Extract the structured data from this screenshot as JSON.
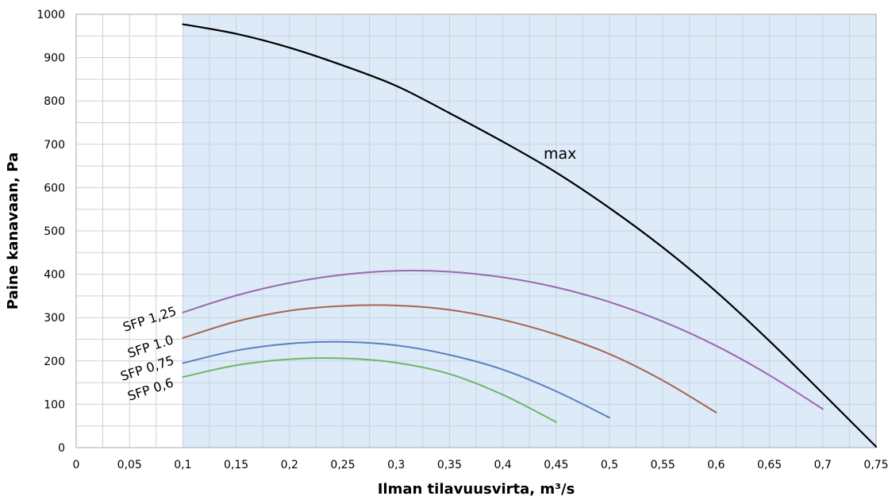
{
  "chart_data": {
    "type": "line",
    "title": "",
    "xlabel": "Ilman tilavuusvirta, m³/s",
    "ylabel": "Paine kanavaan, Pa",
    "xlim": [
      0,
      0.75
    ],
    "ylim": [
      0,
      1000
    ],
    "x_ticks": [
      "0",
      "0,05",
      "0,1",
      "0,15",
      "0,2",
      "0,25",
      "0,3",
      "0,35",
      "0,4",
      "0,45",
      "0,5",
      "0,55",
      "0,6",
      "0,65",
      "0,7",
      "0,75"
    ],
    "y_ticks": [
      "0",
      "100",
      "200",
      "300",
      "400",
      "500",
      "600",
      "700",
      "800",
      "900",
      "1000"
    ],
    "grid": true,
    "operating_area": {
      "x_from": 0.1,
      "x_to": 0.75,
      "fill": "#ddeaf8"
    },
    "series": [
      {
        "name": "max",
        "color": "#000000",
        "points": [
          [
            0.1,
            977
          ],
          [
            0.15,
            955
          ],
          [
            0.2,
            923
          ],
          [
            0.25,
            882
          ],
          [
            0.3,
            835
          ],
          [
            0.35,
            772
          ],
          [
            0.4,
            706
          ],
          [
            0.45,
            635
          ],
          [
            0.5,
            553
          ],
          [
            0.55,
            462
          ],
          [
            0.6,
            360
          ],
          [
            0.65,
            246
          ],
          [
            0.7,
            125
          ],
          [
            0.75,
            2
          ]
        ]
      },
      {
        "name": "SFP 1,25",
        "color": "#9a68b0",
        "points": [
          [
            0.1,
            312
          ],
          [
            0.15,
            351
          ],
          [
            0.2,
            380
          ],
          [
            0.25,
            399
          ],
          [
            0.3,
            408
          ],
          [
            0.35,
            406
          ],
          [
            0.4,
            393
          ],
          [
            0.45,
            370
          ],
          [
            0.5,
            336
          ],
          [
            0.55,
            291
          ],
          [
            0.6,
            235
          ],
          [
            0.65,
            167
          ],
          [
            0.7,
            89
          ]
        ]
      },
      {
        "name": "SFP 1,0",
        "color": "#a86451",
        "points": [
          [
            0.1,
            253
          ],
          [
            0.15,
            291
          ],
          [
            0.2,
            316
          ],
          [
            0.25,
            327
          ],
          [
            0.3,
            328
          ],
          [
            0.35,
            318
          ],
          [
            0.4,
            295
          ],
          [
            0.45,
            261
          ],
          [
            0.5,
            216
          ],
          [
            0.55,
            155
          ],
          [
            0.6,
            81
          ]
        ]
      },
      {
        "name": "SFP 0,75",
        "color": "#5c7fbf",
        "points": [
          [
            0.1,
            195
          ],
          [
            0.15,
            224
          ],
          [
            0.2,
            240
          ],
          [
            0.25,
            244
          ],
          [
            0.3,
            236
          ],
          [
            0.35,
            214
          ],
          [
            0.4,
            180
          ],
          [
            0.45,
            130
          ],
          [
            0.5,
            69
          ]
        ]
      },
      {
        "name": "SFP 0,6",
        "color": "#6ab866",
        "points": [
          [
            0.1,
            163
          ],
          [
            0.15,
            190
          ],
          [
            0.2,
            204
          ],
          [
            0.25,
            206
          ],
          [
            0.3,
            196
          ],
          [
            0.35,
            170
          ],
          [
            0.4,
            122
          ],
          [
            0.45,
            59
          ]
        ]
      }
    ],
    "labels": {
      "max": "max",
      "sfp125": "SFP 1,25",
      "sfp10": "SFP 1.0",
      "sfp075": "SFP 0,75",
      "sfp06": "SFP 0,6"
    }
  }
}
